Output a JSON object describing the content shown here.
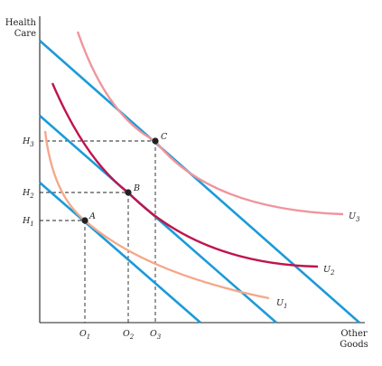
{
  "figure": {
    "y_axis_label": [
      "Health",
      "Care"
    ],
    "x_axis_label": [
      "Other",
      "Goods"
    ],
    "y_ticks": {
      "h1": "H",
      "h1_sub": "1",
      "h2": "H",
      "h2_sub": "2",
      "h3": "H",
      "h3_sub": "3"
    },
    "x_ticks": {
      "o1": "O",
      "o1_sub": "1",
      "o2": "O",
      "o2_sub": "2",
      "o3": "O",
      "o3_sub": "3"
    },
    "points": {
      "a": "A",
      "b": "B",
      "c": "C"
    },
    "curves": {
      "u1": "U",
      "u1_sub": "1",
      "u2": "U",
      "u2_sub": "2",
      "u3": "U",
      "u3_sub": "3"
    },
    "colors": {
      "budget_line": "#1b9bd8",
      "u1": "#f4a98a",
      "u2": "#c0144c",
      "u3": "#ef959c",
      "point": "#222222"
    }
  }
}
